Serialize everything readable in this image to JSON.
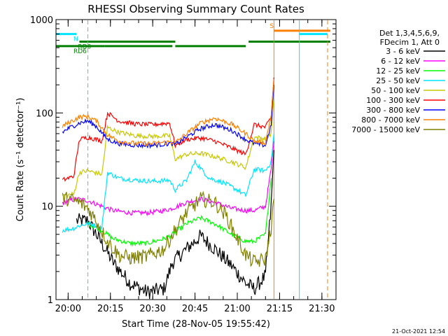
{
  "chart_data": {
    "type": "line",
    "title": "RHESSI Observing Summary Count Rates",
    "xlabel": "Start Time (28-Nov-05 19:55:42)",
    "ylabel": "Count Rate (s⁻¹ detector⁻¹)",
    "y_scale": "log",
    "ylim": [
      1,
      1000
    ],
    "xlim": [
      "19:55:42",
      "21:35:00"
    ],
    "x_ticks": [
      "20:00",
      "20:15",
      "20:30",
      "20:45",
      "21:00",
      "21:15",
      "21:30"
    ],
    "y_ticks": [
      "1",
      "10",
      "100",
      "1000"
    ],
    "legend_header": [
      "Det 1,3,4,5,6,9,",
      "FDecim 1, Att 0"
    ],
    "legend_position": "right",
    "timestamp": "21-Oct-2021 12:54",
    "flags": [
      {
        "label": "N",
        "color": "#00e5ff",
        "level": 700,
        "segments": [
          [
            "19:55:42",
            "20:03"
          ],
          [
            "21:22",
            "21:32"
          ]
        ]
      },
      {
        "label": "RD0",
        "color": "#008000",
        "level": 580,
        "segments": [
          [
            "20:04",
            "20:38"
          ],
          [
            "21:04",
            "21:33"
          ]
        ]
      },
      {
        "label": "RD6",
        "color": "#008000",
        "level": 520,
        "segments": [
          [
            "19:55:42",
            "20:13"
          ],
          [
            "20:13",
            "20:37"
          ],
          [
            "20:38",
            "21:03"
          ]
        ]
      },
      {
        "label": "S",
        "color": "#ff8000",
        "level": 760,
        "segments": [
          [
            "21:13",
            "21:33"
          ]
        ]
      }
    ],
    "vlines": [
      {
        "x": "20:07",
        "color": "#00e5ff",
        "style": "dashed"
      },
      {
        "x": "21:13",
        "color": "#ff8000",
        "style": "solid"
      },
      {
        "x": "21:22",
        "color": "#00e5ff",
        "style": "solid"
      },
      {
        "x": "21:32",
        "color": "#ff8000",
        "style": "dashed"
      }
    ],
    "series": [
      {
        "name": "3 - 6 keV",
        "color": "#000000",
        "x": [
          "20:03",
          "20:07",
          "20:12",
          "20:16",
          "20:22",
          "20:28",
          "20:34",
          "20:37",
          "20:42",
          "20:47",
          "20:52",
          "20:58",
          "21:03",
          "21:06",
          "21:10",
          "21:12",
          "21:13"
        ],
        "y": [
          7,
          7,
          4,
          2.5,
          1.5,
          1.2,
          1.3,
          2.5,
          3.5,
          4.8,
          3.5,
          2.3,
          1.5,
          1.3,
          1.8,
          10,
          40
        ]
      },
      {
        "name": "6 - 12 keV",
        "color": "#ff00ff",
        "x": [
          "19:58",
          "20:03",
          "20:07",
          "20:12",
          "20:16",
          "20:22",
          "20:28",
          "20:34",
          "20:37",
          "20:42",
          "20:47",
          "20:52",
          "20:58",
          "21:03",
          "21:06",
          "21:10",
          "21:12",
          "21:13"
        ],
        "y": [
          11,
          12,
          11.5,
          10,
          9,
          8.5,
          8.5,
          9,
          9.5,
          11,
          12,
          11,
          9.5,
          9,
          9,
          10,
          25,
          50
        ]
      },
      {
        "name": "12 - 25 keV",
        "color": "#00ff00",
        "x": [
          "20:07",
          "20:12",
          "20:16",
          "20:22",
          "20:28",
          "20:34",
          "20:37",
          "20:42",
          "20:47",
          "20:52",
          "20:58",
          "21:03",
          "21:06",
          "21:10",
          "21:12"
        ],
        "y": [
          6.5,
          5.5,
          4.5,
          4,
          4,
          4.5,
          5,
          6.5,
          7.5,
          6.5,
          5,
          4.2,
          4.2,
          5,
          20
        ]
      },
      {
        "name": "25 - 50 keV",
        "color": "#00e5ff",
        "x": [
          "19:58",
          "20:02",
          "20:04",
          "20:07",
          "20:12",
          "20:14",
          "20:18",
          "20:24",
          "20:30",
          "20:36",
          "20:38",
          "20:42",
          "20:45",
          "20:50",
          "20:55",
          "21:00",
          "21:03",
          "21:06",
          "21:10",
          "21:12",
          "21:13"
        ],
        "y": [
          5.5,
          5.8,
          6.2,
          6.5,
          6,
          23,
          20,
          19,
          18.5,
          19,
          15,
          19,
          30,
          20,
          18,
          15,
          13,
          25,
          24,
          30,
          60
        ]
      },
      {
        "name": "50 - 100 keV",
        "color": "#c8c800",
        "x": [
          "19:58",
          "20:02",
          "20:04",
          "20:07",
          "20:12",
          "20:14",
          "20:18",
          "20:24",
          "20:30",
          "20:36",
          "20:38",
          "20:42",
          "20:47",
          "20:52",
          "20:58",
          "21:03",
          "21:06",
          "21:10",
          "21:12",
          "21:13"
        ],
        "y": [
          13,
          13.5,
          23,
          24,
          22,
          70,
          62,
          57,
          56,
          57,
          32,
          36,
          37,
          34,
          30,
          26,
          55,
          53,
          60,
          150
        ]
      },
      {
        "name": "100 - 300 keV",
        "color": "#ff0000",
        "x": [
          "19:58",
          "20:02",
          "20:04",
          "20:07",
          "20:12",
          "20:14",
          "20:18",
          "20:24",
          "20:30",
          "20:36",
          "20:38",
          "20:42",
          "20:47",
          "20:52",
          "20:58",
          "21:03",
          "21:06",
          "21:10",
          "21:12",
          "21:13"
        ],
        "y": [
          19,
          21,
          52,
          55,
          50,
          100,
          82,
          76,
          75,
          78,
          45,
          52,
          54,
          50,
          42,
          36,
          75,
          70,
          90,
          240
        ]
      },
      {
        "name": "300 - 800 keV",
        "color": "#0000ff",
        "x": [
          "19:58",
          "20:00",
          "20:04",
          "20:07",
          "20:10",
          "20:14",
          "20:18",
          "20:24",
          "20:30",
          "20:36",
          "20:38",
          "20:42",
          "20:47",
          "20:52",
          "20:58",
          "21:03",
          "21:06",
          "21:10",
          "21:12",
          "21:13"
        ],
        "y": [
          62,
          68,
          78,
          82,
          72,
          52,
          47,
          45,
          45,
          47,
          46,
          55,
          68,
          75,
          65,
          52,
          47,
          45,
          75,
          200
        ]
      },
      {
        "name": "800 - 7000 keV",
        "color": "#ff8000",
        "x": [
          "19:58",
          "20:00",
          "20:04",
          "20:07",
          "20:10",
          "20:14",
          "20:18",
          "20:24",
          "20:30",
          "20:36",
          "20:38",
          "20:42",
          "20:47",
          "20:52",
          "20:58",
          "21:03",
          "21:06",
          "21:10",
          "21:12",
          "21:13"
        ],
        "y": [
          72,
          78,
          90,
          92,
          82,
          58,
          50,
          47,
          47,
          49,
          48,
          60,
          78,
          88,
          76,
          60,
          50,
          48,
          95,
          230
        ]
      },
      {
        "name": "7000 - 15000 keV",
        "color": "#808000",
        "x": [
          "19:58",
          "20:00",
          "20:04",
          "20:07",
          "20:10",
          "20:14",
          "20:18",
          "20:22",
          "20:28",
          "20:34",
          "20:37",
          "20:42",
          "20:47",
          "20:52",
          "20:56",
          "21:00",
          "21:03",
          "21:06",
          "21:10",
          "21:12",
          "21:13"
        ],
        "y": [
          12,
          12,
          11,
          9.5,
          7,
          4.2,
          3,
          2.8,
          2.9,
          3.5,
          5,
          8.5,
          12,
          11,
          8,
          4.5,
          3,
          2.5,
          2.7,
          6,
          12
        ]
      }
    ]
  }
}
